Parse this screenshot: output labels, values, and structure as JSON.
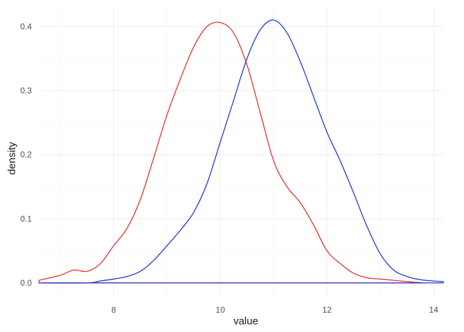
{
  "chart_data": {
    "type": "area",
    "xlabel": "value",
    "ylabel": "density",
    "xlim": [
      6.62,
      14.18
    ],
    "ylim": [
      -0.0205,
      0.4305
    ],
    "x_ticks": [
      8,
      10,
      12,
      14
    ],
    "x_tick_labels": [
      "8",
      "10",
      "12",
      "14"
    ],
    "y_ticks": [
      0.0,
      0.1,
      0.2,
      0.3,
      0.4
    ],
    "y_tick_labels": [
      "0.0",
      "0.1",
      "0.2",
      "0.3",
      "0.4"
    ],
    "grid": true,
    "legend": "none",
    "series": [
      {
        "color": "#e8302a",
        "x": [
          6.6,
          7.0,
          7.25,
          7.5,
          7.75,
          8.0,
          8.25,
          8.5,
          8.75,
          9.0,
          9.25,
          9.5,
          9.75,
          10.0,
          10.25,
          10.5,
          10.75,
          11.0,
          11.25,
          11.5,
          11.75,
          12.0,
          12.25,
          12.5,
          12.75,
          13.0,
          13.25,
          13.5,
          13.8
        ],
        "y": [
          0.004,
          0.012,
          0.02,
          0.018,
          0.03,
          0.058,
          0.085,
          0.13,
          0.195,
          0.262,
          0.318,
          0.368,
          0.4,
          0.406,
          0.39,
          0.34,
          0.265,
          0.19,
          0.15,
          0.125,
          0.09,
          0.05,
          0.03,
          0.015,
          0.008,
          0.006,
          0.004,
          0.002,
          0.0
        ]
      },
      {
        "color": "#1e36d4",
        "x": [
          6.6,
          7.5,
          7.75,
          8.0,
          8.25,
          8.5,
          8.75,
          9.0,
          9.25,
          9.5,
          9.75,
          10.0,
          10.25,
          10.5,
          10.75,
          11.0,
          11.25,
          11.5,
          11.75,
          12.0,
          12.25,
          12.5,
          12.75,
          13.0,
          13.25,
          13.5,
          13.75,
          14.0,
          14.18
        ],
        "y": [
          0.0,
          0.0,
          0.003,
          0.006,
          0.01,
          0.018,
          0.035,
          0.058,
          0.082,
          0.11,
          0.155,
          0.22,
          0.285,
          0.35,
          0.395,
          0.41,
          0.39,
          0.345,
          0.29,
          0.235,
          0.19,
          0.14,
          0.088,
          0.045,
          0.02,
          0.01,
          0.005,
          0.003,
          0.002
        ]
      }
    ]
  }
}
